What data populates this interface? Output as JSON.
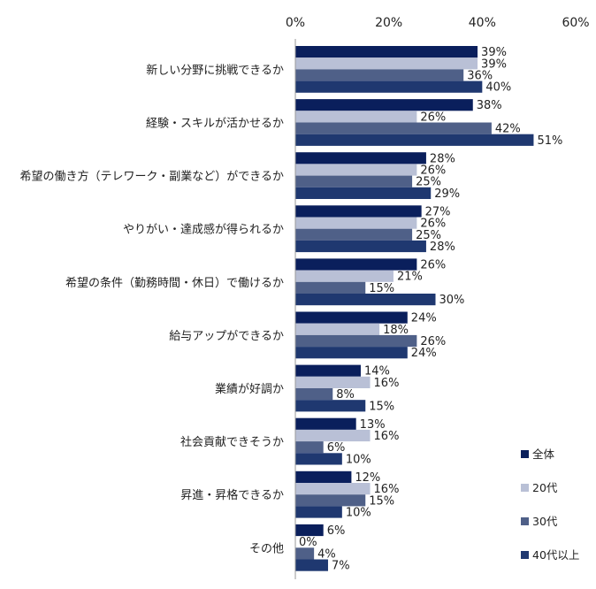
{
  "chart_data": {
    "type": "bar",
    "orientation": "horizontal",
    "categories": [
      "新しい分野に挑戦できるか",
      "経験・スキルが活かせるか",
      "希望の働き方（テレワーク・副業など）ができるか",
      "やりがい・達成感が得られるか",
      "希望の条件（勤務時間・休日）で働けるか",
      "給与アップができるか",
      "業績が好調か",
      "社会貢献できそうか",
      "昇進・昇格できるか",
      "その他"
    ],
    "series": [
      {
        "name": "全体",
        "color": "#0a1f5c",
        "values": [
          39,
          38,
          28,
          27,
          26,
          24,
          14,
          13,
          12,
          6
        ]
      },
      {
        "name": "20代",
        "color": "#b9c0d6",
        "values": [
          39,
          26,
          26,
          26,
          21,
          18,
          16,
          16,
          16,
          0
        ]
      },
      {
        "name": "30代",
        "color": "#4f6088",
        "values": [
          36,
          42,
          25,
          25,
          15,
          26,
          8,
          6,
          15,
          4
        ]
      },
      {
        "name": "40代以上",
        "color": "#1f3870",
        "values": [
          40,
          51,
          29,
          28,
          30,
          24,
          15,
          10,
          10,
          7
        ]
      }
    ],
    "xticks": [
      "0%",
      "20%",
      "40%",
      "60%"
    ],
    "xlim": [
      0,
      60
    ],
    "value_suffix": "%",
    "legend_position": "bottom-right",
    "grid": false
  }
}
